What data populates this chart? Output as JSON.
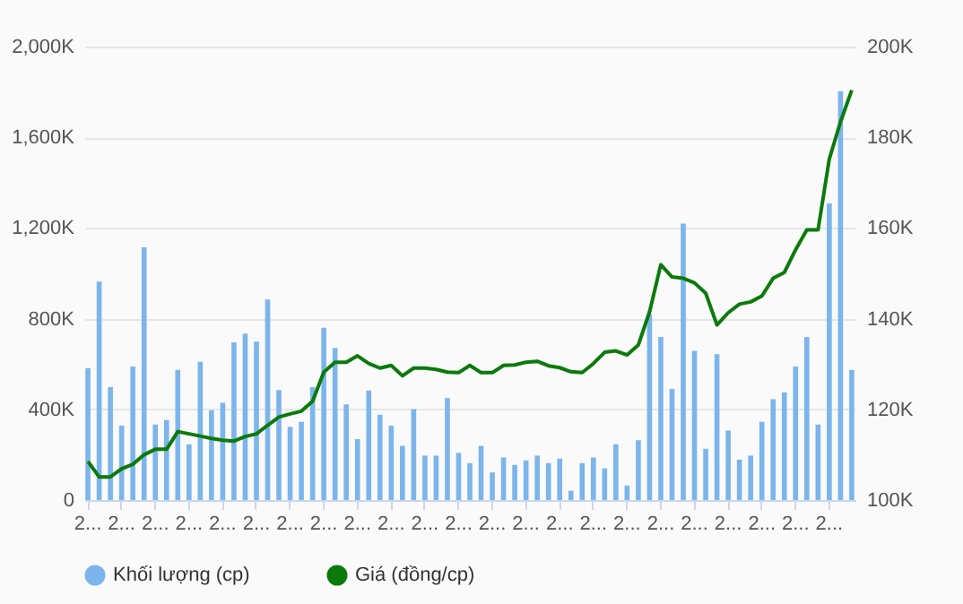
{
  "chart_data": {
    "type": "bar",
    "categories": [
      "2...",
      null,
      null,
      "2...",
      null,
      null,
      "2...",
      null,
      null,
      "2...",
      null,
      null,
      "2...",
      null,
      null,
      "2...",
      null,
      null,
      "2...",
      null,
      null,
      "2...",
      null,
      null,
      "2...",
      null,
      null,
      "2...",
      null,
      null,
      "2...",
      null,
      null,
      "2...",
      null,
      null,
      "2...",
      null,
      null,
      "2...",
      null,
      null,
      "2...",
      null,
      null,
      "2...",
      null,
      null,
      "2...",
      null,
      null,
      "2...",
      null,
      null,
      "2...",
      null,
      null,
      "2...",
      null,
      null,
      "2...",
      null,
      null,
      "2...",
      null,
      null,
      "2...",
      null,
      null
    ],
    "series": [
      {
        "name": "Khối lượng (cp)",
        "color": "#7cb5ec",
        "values": [
          582,
          963,
          498,
          328,
          589,
          1115,
          333,
          353,
          574,
          246,
          610,
          396,
          429,
          696,
          734,
          699,
          884,
          485,
          323,
          345,
          498,
          760,
          671,
          422,
          269,
          483,
          376,
          328,
          239,
          401,
          196,
          196,
          450,
          208,
          163,
          239,
          122,
          188,
          155,
          175,
          196,
          163,
          183,
          41,
          163,
          188,
          140,
          246,
          64,
          264,
          820,
          719,
          490,
          1219,
          658,
          226,
          643,
          307,
          178,
          196,
          345,
          445,
          475,
          589,
          719,
          333,
          1308,
          1803,
          574
        ]
      },
      {
        "name": "Giá (đồng/cp)",
        "type": "line",
        "axis": "y2",
        "color": "#0b7a0b",
        "values": [
          108.5,
          105.1,
          105.1,
          106.9,
          107.9,
          110.0,
          111.2,
          111.2,
          115.1,
          114.6,
          114.1,
          113.6,
          113.2,
          113.0,
          114.0,
          114.6,
          116.5,
          118.3,
          119.0,
          119.6,
          121.8,
          128.2,
          130.4,
          130.4,
          131.8,
          130.1,
          129.1,
          129.7,
          127.4,
          129.1,
          129.1,
          128.8,
          128.2,
          128.1,
          129.7,
          128.1,
          128.1,
          129.7,
          129.8,
          130.4,
          130.6,
          129.6,
          129.2,
          128.3,
          128.1,
          130.1,
          132.6,
          132.9,
          132.0,
          134.2,
          141.5,
          151.9,
          149.2,
          148.9,
          147.9,
          145.6,
          138.6,
          141.3,
          143.2,
          143.7,
          145.0,
          148.9,
          150.2,
          155.2,
          159.6,
          159.6,
          175.2,
          183.4,
          190.4
        ]
      }
    ],
    "ylim": [
      0,
      2000
    ],
    "yticks": [
      {
        "value": 0,
        "label": "0"
      },
      {
        "value": 400,
        "label": "400K"
      },
      {
        "value": 800,
        "label": "800K"
      },
      {
        "value": 1200,
        "label": "1,200K"
      },
      {
        "value": 1600,
        "label": "1,600K"
      },
      {
        "value": 2000,
        "label": "2,000K"
      }
    ],
    "y2lim": [
      100,
      200
    ],
    "y2ticks": [
      {
        "value": 100,
        "label": "100K"
      },
      {
        "value": 120,
        "label": "120K"
      },
      {
        "value": 140,
        "label": "140K"
      },
      {
        "value": 160,
        "label": "160K"
      },
      {
        "value": 180,
        "label": "180K"
      },
      {
        "value": 200,
        "label": "200K"
      }
    ],
    "grid": "y",
    "legend": "bottom"
  }
}
